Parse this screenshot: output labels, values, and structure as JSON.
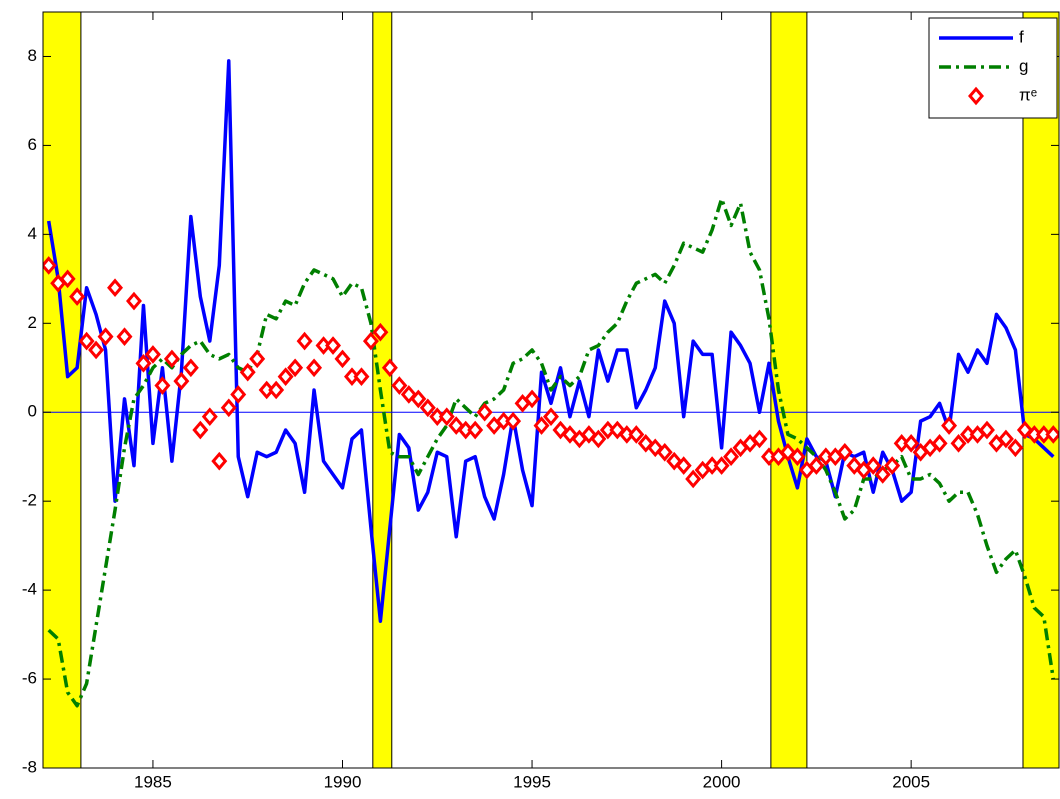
{
  "chart_data": {
    "type": "line",
    "x": [
      1982.25,
      1982.5,
      1982.75,
      1983,
      1983.25,
      1983.5,
      1983.75,
      1984,
      1984.25,
      1984.5,
      1984.75,
      1985,
      1985.25,
      1985.5,
      1985.75,
      1986,
      1986.25,
      1986.5,
      1986.75,
      1987,
      1987.25,
      1987.5,
      1987.75,
      1988,
      1988.25,
      1988.5,
      1988.75,
      1989,
      1989.25,
      1989.5,
      1989.75,
      1990,
      1990.25,
      1990.5,
      1990.75,
      1991,
      1991.25,
      1991.5,
      1991.75,
      1992,
      1992.25,
      1992.5,
      1992.75,
      1993,
      1993.25,
      1993.5,
      1993.75,
      1994,
      1994.25,
      1994.5,
      1994.75,
      1995,
      1995.25,
      1995.5,
      1995.75,
      1996,
      1996.25,
      1996.5,
      1996.75,
      1997,
      1997.25,
      1997.5,
      1997.75,
      1998,
      1998.25,
      1998.5,
      1998.75,
      1999,
      1999.25,
      1999.5,
      1999.75,
      2000,
      2000.25,
      2000.5,
      2000.75,
      2001,
      2001.25,
      2001.5,
      2001.75,
      2002,
      2002.25,
      2002.5,
      2002.75,
      2003,
      2003.25,
      2003.5,
      2003.75,
      2004,
      2004.25,
      2004.5,
      2004.75,
      2005,
      2005.25,
      2005.5,
      2005.75,
      2006,
      2006.25,
      2006.5,
      2006.75,
      2007,
      2007.25,
      2007.5,
      2007.75,
      2008,
      2008.25,
      2008.5,
      2008.75
    ],
    "series": [
      {
        "name": "f",
        "color": "#0000ff",
        "style": "solid",
        "values": [
          4.3,
          3.0,
          0.8,
          1.0,
          2.8,
          2.2,
          1.4,
          -2.0,
          0.3,
          -1.2,
          2.4,
          -0.7,
          1.0,
          -1.1,
          0.9,
          4.4,
          2.6,
          1.6,
          3.3,
          7.9,
          -1.0,
          -1.9,
          -0.9,
          -1.0,
          -0.9,
          -0.4,
          -0.7,
          -1.8,
          0.5,
          -1.1,
          -1.4,
          -1.7,
          -0.6,
          -0.4,
          -2.6,
          -4.7,
          -2.6,
          -0.5,
          -0.8,
          -2.2,
          -1.8,
          -0.9,
          -1.0,
          -2.8,
          -1.1,
          -1.0,
          -1.9,
          -2.4,
          -1.4,
          -0.1,
          -1.3,
          -2.1,
          0.9,
          0.2,
          1.0,
          -0.1,
          0.7,
          -0.1,
          1.4,
          0.7,
          1.4,
          1.4,
          0.1,
          0.5,
          1.0,
          2.5,
          2.0,
          -0.1,
          1.6,
          1.3,
          1.3,
          -0.8,
          1.8,
          1.5,
          1.1,
          0.0,
          1.1,
          -0.2,
          -1.0,
          -1.7,
          -0.6,
          -1.0,
          -1.1,
          -1.9,
          -0.9,
          -1.0,
          -0.9,
          -1.8,
          -0.9,
          -1.3,
          -2.0,
          -1.8,
          -0.2,
          -0.1,
          0.2,
          -0.4,
          1.3,
          0.9,
          1.4,
          1.1,
          2.2,
          1.9,
          1.4,
          -0.5,
          -0.6,
          -0.8,
          -1.0
        ]
      },
      {
        "name": "g",
        "color": "#007f00",
        "style": "dashdot",
        "values": [
          -4.9,
          -5.1,
          -6.3,
          -6.6,
          -6.1,
          -4.8,
          -3.5,
          -2.2,
          -0.8,
          0.3,
          0.6,
          1.0,
          1.2,
          1.0,
          1.3,
          1.5,
          1.6,
          1.3,
          1.2,
          1.3,
          1.0,
          0.9,
          1.3,
          2.2,
          2.1,
          2.5,
          2.4,
          2.9,
          3.2,
          3.1,
          3.0,
          2.6,
          2.9,
          2.8,
          2.0,
          0.5,
          -0.9,
          -1.0,
          -1.0,
          -1.4,
          -1.0,
          -0.6,
          -0.3,
          0.3,
          0.1,
          -0.1,
          0.2,
          0.3,
          0.5,
          1.1,
          1.2,
          1.4,
          1.1,
          0.5,
          0.8,
          0.6,
          0.8,
          1.4,
          1.5,
          1.8,
          2.0,
          2.5,
          2.9,
          3.0,
          3.1,
          2.9,
          3.3,
          3.8,
          3.7,
          3.6,
          4.1,
          4.8,
          4.2,
          4.7,
          3.6,
          3.2,
          2.1,
          0.5,
          -0.5,
          -0.6,
          -0.8,
          -1.0,
          -1.3,
          -1.8,
          -2.4,
          -2.2,
          -1.5,
          -1.5,
          -1.3,
          -1.2,
          -1.0,
          -1.5,
          -1.5,
          -1.4,
          -1.6,
          -2.0,
          -1.8,
          -1.8,
          -2.3,
          -3.0,
          -3.6,
          -3.3,
          -3.1,
          -3.7,
          -4.4,
          -4.6,
          -6.0
        ]
      },
      {
        "name": "πᵉ",
        "color": "#ff0000",
        "style": "diamond",
        "values": [
          3.3,
          2.9,
          3.0,
          2.6,
          1.6,
          1.4,
          1.7,
          2.8,
          1.7,
          2.5,
          1.1,
          1.3,
          0.6,
          1.2,
          0.7,
          1.0,
          -0.4,
          -0.1,
          -1.1,
          0.1,
          0.4,
          0.9,
          1.2,
          0.5,
          0.5,
          0.8,
          1.0,
          1.6,
          1.0,
          1.5,
          1.5,
          1.2,
          0.8,
          0.8,
          1.6,
          1.8,
          1.0,
          0.6,
          0.4,
          0.3,
          0.1,
          -0.1,
          -0.1,
          -0.3,
          -0.4,
          -0.4,
          0.0,
          -0.3,
          -0.2,
          -0.2,
          0.2,
          0.3,
          -0.3,
          -0.1,
          -0.4,
          -0.5,
          -0.6,
          -0.5,
          -0.6,
          -0.4,
          -0.4,
          -0.5,
          -0.5,
          -0.7,
          -0.8,
          -0.9,
          -1.1,
          -1.2,
          -1.5,
          -1.3,
          -1.2,
          -1.2,
          -1.0,
          -0.8,
          -0.7,
          -0.6,
          -1.0,
          -1.0,
          -0.9,
          -1.0,
          -1.3,
          -1.2,
          -1.0,
          -1.0,
          -0.9,
          -1.2,
          -1.3,
          -1.2,
          -1.4,
          -1.2,
          -0.7,
          -0.7,
          -0.9,
          -0.8,
          -0.7,
          -0.3,
          -0.7,
          -0.5,
          -0.5,
          -0.4,
          -0.7,
          -0.6,
          -0.8,
          -0.4,
          -0.5,
          -0.5,
          -0.5
        ]
      }
    ],
    "recessions": [
      [
        1982.0,
        1983.1
      ],
      [
        1990.8,
        1991.3
      ],
      [
        2001.3,
        2002.25
      ],
      [
        2007.95,
        2008.9
      ]
    ],
    "recession_color": "#ffff00",
    "hline": 0,
    "hline_color": "#0000ff",
    "xlim": [
      1982.1,
      2008.9
    ],
    "xticks": [
      1985,
      1990,
      1995,
      2000,
      2005
    ],
    "ylim": [
      -8,
      9
    ],
    "yticks": [
      -8,
      -6,
      -4,
      -2,
      0,
      2,
      4,
      6,
      8
    ],
    "legend": "top-right"
  }
}
